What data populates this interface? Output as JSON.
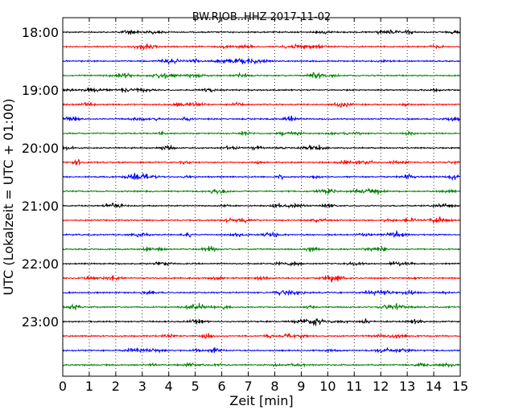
{
  "chart_data": {
    "type": "line",
    "title": "BW.RJOB..HHZ 2017-11-02",
    "xlabel": "Zeit  [min]",
    "ylabel": "UTC (Lokalzeit = UTC + 01:00)",
    "xlim": [
      0,
      15
    ],
    "x_ticks": [
      "0",
      "1",
      "2",
      "3",
      "4",
      "5",
      "6",
      "7",
      "8",
      "9",
      "10",
      "11",
      "12",
      "13",
      "14",
      "15"
    ],
    "y_ticks": [
      "18:00",
      "19:00",
      "20:00",
      "21:00",
      "22:00",
      "23:00"
    ],
    "grid": "vertical-dotted",
    "traces_per_hour": 4,
    "trace_minutes": 15,
    "start_hour": 18,
    "trace_count": 24,
    "colors": [
      "#000000",
      "#ff0000",
      "#0000ff",
      "#008000"
    ]
  }
}
